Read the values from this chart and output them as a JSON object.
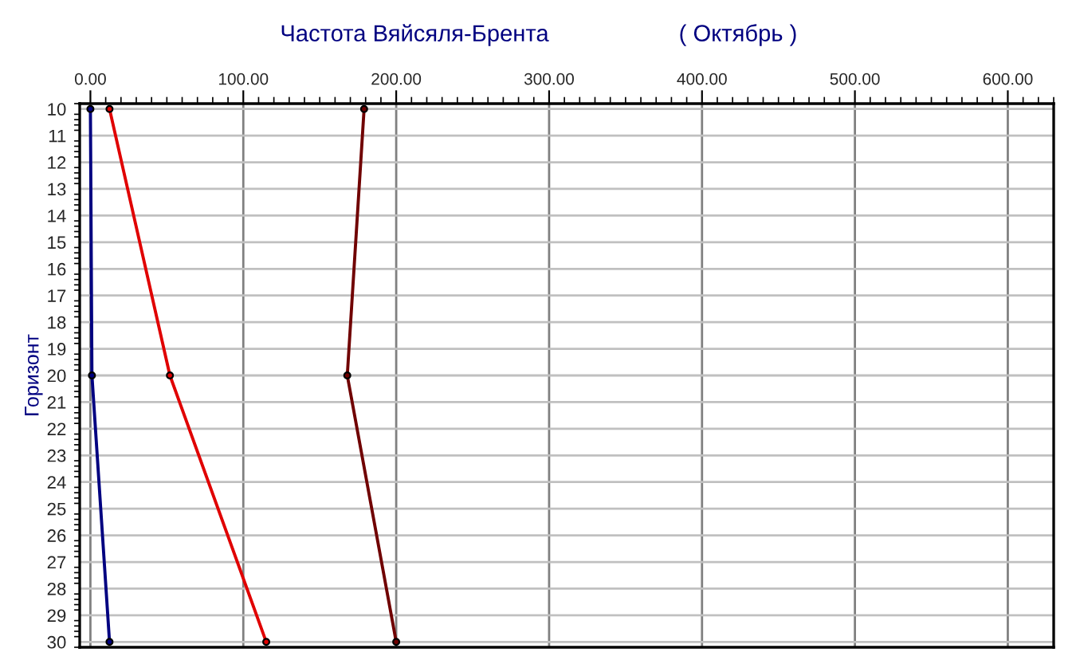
{
  "chart_data": {
    "type": "line",
    "title": "Частота Вяйсяля-Брента",
    "subtitle": "( Октябрь )",
    "ylabel": "Горизонт",
    "series": [
      {
        "color": "#000080",
        "x": [
          0,
          1,
          12.5
        ],
        "values": [
          10,
          20,
          30
        ]
      },
      {
        "color": "#e00000",
        "x": [
          12.5,
          52,
          115
        ],
        "values": [
          10,
          20,
          30
        ]
      },
      {
        "color": "#700000",
        "x": [
          179,
          168,
          200
        ],
        "values": [
          10,
          20,
          30
        ]
      }
    ],
    "xlim": [
      -7,
      630
    ],
    "xticks": [
      {
        "value": 0,
        "label": "0.00"
      },
      {
        "value": 100,
        "label": "100.00"
      },
      {
        "value": 200,
        "label": "200.00"
      },
      {
        "value": 300,
        "label": "300.00"
      },
      {
        "value": 400,
        "label": "400.00"
      },
      {
        "value": 500,
        "label": "500.00"
      },
      {
        "value": 600,
        "label": "600.00"
      }
    ],
    "ylim": [
      30.2,
      9.8
    ],
    "yticks": [
      10,
      11,
      12,
      13,
      14,
      15,
      16,
      17,
      18,
      19,
      20,
      21,
      22,
      23,
      24,
      25,
      26,
      27,
      28,
      29,
      30
    ],
    "grid": true,
    "marker": "circle",
    "line_style": "solid"
  }
}
